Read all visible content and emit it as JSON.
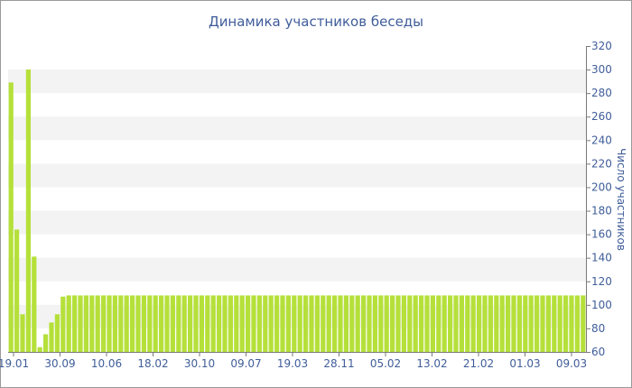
{
  "chart_data": {
    "type": "bar",
    "title": "Динамика участников беседы",
    "xlabel": "",
    "ylabel": "Число участников",
    "ylim": [
      60,
      320
    ],
    "yticks": [
      60,
      80,
      100,
      120,
      140,
      160,
      180,
      200,
      220,
      240,
      260,
      280,
      300,
      320
    ],
    "x_tick_labels": [
      "19.01",
      "30.09",
      "10.06",
      "18.02",
      "30.10",
      "09.07",
      "19.03",
      "28.11",
      "05.02",
      "13.02",
      "21.02",
      "01.03",
      "09.03"
    ],
    "y_axis_position": "right",
    "grid": "alternating horizontal bands",
    "bar_color": "#b5e03a",
    "values": [
      289,
      164,
      92,
      300,
      141,
      64,
      75,
      85,
      92,
      107,
      108,
      108,
      108,
      108,
      108,
      108,
      108,
      108,
      108,
      108,
      108,
      108,
      108,
      108,
      108,
      108,
      108,
      108,
      108,
      108,
      108,
      108,
      108,
      108,
      108,
      108,
      108,
      108,
      108,
      108,
      108,
      108,
      108,
      108,
      108,
      108,
      108,
      108,
      108,
      108,
      108,
      108,
      108,
      108,
      108,
      108,
      108,
      108,
      108,
      108,
      108,
      108,
      108,
      108,
      108,
      108,
      108,
      108,
      108,
      108,
      108,
      108,
      108,
      108,
      108,
      108,
      108,
      108,
      108,
      108,
      108,
      108,
      108,
      108,
      108,
      108,
      108,
      108,
      108,
      108,
      108,
      108,
      108,
      108,
      108,
      108,
      108,
      108,
      108,
      108
    ]
  }
}
